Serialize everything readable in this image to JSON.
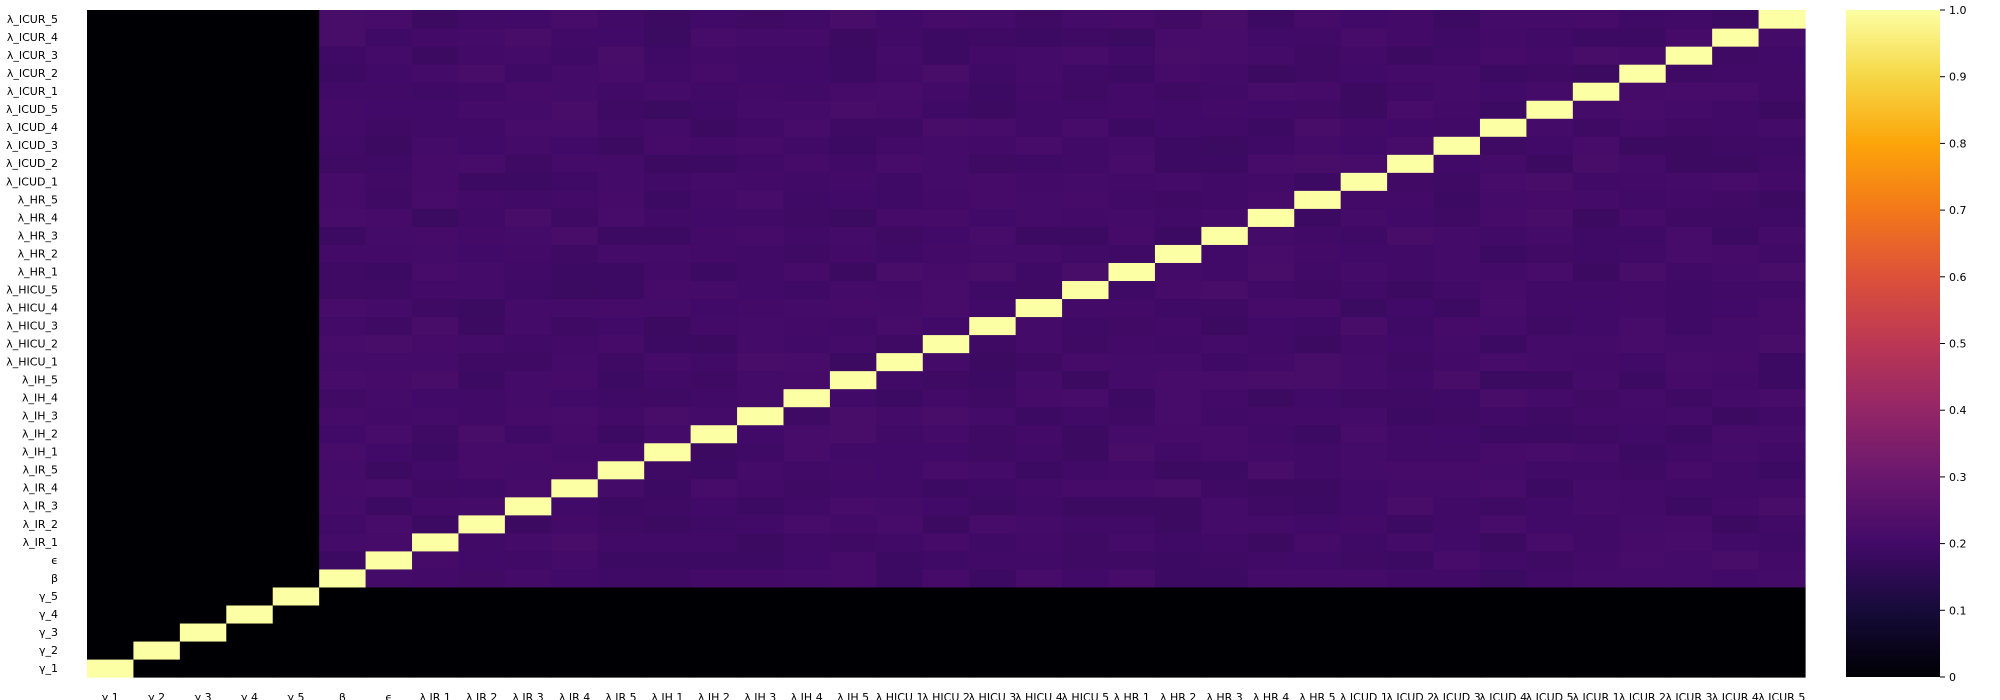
{
  "chart_data": {
    "type": "heatmap",
    "title": "",
    "xlabel": "",
    "ylabel": "",
    "x_labels": [
      "γ 1",
      "γ 2",
      "γ 3",
      "γ 4",
      "γ 5",
      "β",
      "ϵ",
      "λ IR 1",
      "λ IR 2",
      "λ IR 3",
      "λ IR 4",
      "λ IR 5",
      "λ IH 1",
      "λ IH 2",
      "λ IH 3",
      "λ IH 4",
      "λ IH 5",
      "λ HICU 1",
      "λ HICU 2",
      "λ HICU 3",
      "λ HICU 4",
      "λ HICU 5",
      "λ HR 1",
      "λ HR 2",
      "λ HR 3",
      "λ HR 4",
      "λ HR 5",
      "λ ICUD 1",
      "λ ICUD 2",
      "λ ICUD 3",
      "λ ICUD 4",
      "λ ICUD 5",
      "λ ICUR 1",
      "λ ICUR 2",
      "λ ICUR 3",
      "λ ICUR 4",
      "λ ICUR 5"
    ],
    "y_labels": [
      "γ_1",
      "γ_2",
      "γ_3",
      "γ_4",
      "γ_5",
      "β",
      "ϵ",
      "λ_IR_1",
      "λ_IR_2",
      "λ_IR_3",
      "λ_IR_4",
      "λ_IR_5",
      "λ_IH_1",
      "λ_IH_2",
      "λ_IH_3",
      "λ_IH_4",
      "λ_IH_5",
      "λ_HICU_1",
      "λ_HICU_2",
      "λ_HICU_3",
      "λ_HICU_4",
      "λ_HICU_5",
      "λ_HR_1",
      "λ_HR_2",
      "λ_HR_3",
      "λ_HR_4",
      "λ_HR_5",
      "λ_ICUD_1",
      "λ_ICUD_2",
      "λ_ICUD_3",
      "λ_ICUD_4",
      "λ_ICUD_5",
      "λ_ICUR_1",
      "λ_ICUR_2",
      "λ_ICUR_3",
      "λ_ICUR_4",
      "λ_ICUR_5"
    ],
    "values_description_rule": {
      "diagonal": 1.0,
      "gamma_block": 0.0,
      "other_block": 0.2
    },
    "colorbar": {
      "colormap": "inferno",
      "range": [
        0,
        1
      ],
      "ticks": [
        "0",
        "0.1",
        "0.2",
        "0.3",
        "0.4",
        "0.5",
        "0.6",
        "0.7",
        "0.8",
        "0.9",
        "1.0"
      ]
    },
    "legend_position": "right"
  }
}
